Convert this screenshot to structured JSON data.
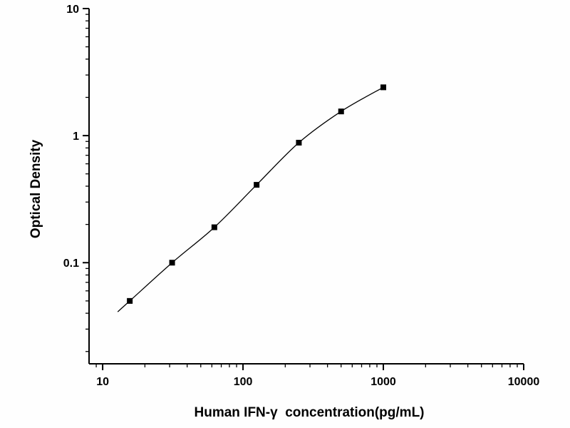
{
  "figure": {
    "background": "#fefefe"
  },
  "chart_data": {
    "type": "scatter",
    "title": "",
    "xlabel": "Human IFN-γ  concentration(pg/mL)",
    "ylabel": "Optical Density",
    "x_scale": "log",
    "y_scale": "log",
    "xlim": [
      8,
      10000
    ],
    "ylim": [
      0.016,
      10
    ],
    "x_major_ticks": [
      10,
      100,
      1000,
      10000
    ],
    "x_tick_labels": [
      "10",
      "100",
      "1000",
      "10000"
    ],
    "y_major_ticks": [
      0.1,
      1,
      10
    ],
    "y_tick_labels": [
      "0.1",
      "1",
      "10"
    ],
    "grid": false,
    "legend_position": "none",
    "marker": "filled-square",
    "marker_color": "#000000",
    "line_color": "#000000",
    "series": [
      {
        "x": [
          15.6,
          31.25,
          62.5,
          125,
          250,
          500,
          1000
        ],
        "y": [
          0.05,
          0.1,
          0.19,
          0.41,
          0.88,
          1.55,
          2.4
        ]
      }
    ]
  }
}
